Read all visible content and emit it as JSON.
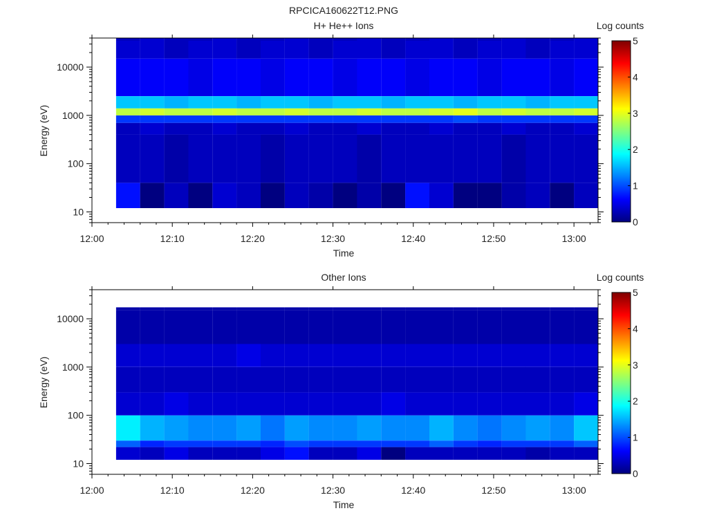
{
  "figure_title": "RPCICA160622T12.PNG",
  "chart_data": [
    {
      "type": "heatmap",
      "title": "H+ He++ Ions",
      "xlabel": "Time",
      "ylabel": "Energy (eV)",
      "yscale": "log",
      "ylim": [
        6,
        40000
      ],
      "xlim": [
        "12:00",
        "13:03"
      ],
      "x_ticks": [
        "12:00",
        "12:10",
        "12:20",
        "12:30",
        "12:40",
        "12:50",
        "13:00"
      ],
      "y_ticks": [
        "10",
        "100",
        "1000",
        "10000"
      ],
      "time_bins": [
        "12:03",
        "12:06",
        "12:09",
        "12:12",
        "12:15",
        "12:18",
        "12:21",
        "12:24",
        "12:27",
        "12:30",
        "12:33",
        "12:36",
        "12:39",
        "12:42",
        "12:45",
        "12:48",
        "12:51",
        "12:54",
        "12:57",
        "13:00"
      ],
      "energy_bins_eV": [
        12,
        40,
        400,
        700,
        1000,
        1400,
        2500,
        15000,
        35000
      ],
      "counts_log": [
        [
          0.7,
          0.3,
          0.3,
          0.9,
          2.8,
          1.6,
          0.6,
          0.4,
          0.3
        ],
        [
          0.0,
          0.3,
          0.4,
          0.9,
          2.9,
          1.6,
          0.6,
          0.4,
          0.4
        ],
        [
          0.3,
          0.2,
          0.3,
          0.9,
          2.8,
          1.5,
          0.6,
          0.3,
          0.3
        ],
        [
          0.0,
          0.3,
          0.3,
          0.9,
          2.8,
          1.6,
          0.5,
          0.4,
          0.3
        ],
        [
          0.4,
          0.3,
          0.4,
          0.9,
          2.9,
          1.6,
          0.6,
          0.4,
          0.4
        ],
        [
          0.3,
          0.3,
          0.3,
          0.9,
          2.8,
          1.5,
          0.6,
          0.3,
          0.3
        ],
        [
          0.0,
          0.2,
          0.3,
          0.9,
          2.8,
          1.6,
          0.5,
          0.4,
          0.3
        ],
        [
          0.3,
          0.3,
          0.4,
          0.9,
          2.9,
          1.6,
          0.6,
          0.4,
          0.4
        ],
        [
          0.2,
          0.3,
          0.3,
          0.9,
          2.8,
          1.5,
          0.6,
          0.3,
          0.3
        ],
        [
          0.0,
          0.3,
          0.3,
          0.9,
          2.8,
          1.6,
          0.5,
          0.4,
          0.3
        ],
        [
          0.2,
          0.2,
          0.4,
          0.9,
          2.9,
          1.6,
          0.6,
          0.4,
          0.4
        ],
        [
          0.0,
          0.3,
          0.3,
          0.9,
          2.8,
          1.5,
          0.6,
          0.3,
          0.3
        ],
        [
          0.7,
          0.3,
          0.3,
          0.9,
          2.8,
          1.6,
          0.5,
          0.4,
          0.3
        ],
        [
          0.4,
          0.3,
          0.4,
          0.9,
          2.9,
          1.6,
          0.6,
          0.4,
          0.4
        ],
        [
          0.0,
          0.3,
          0.3,
          1.0,
          3.0,
          1.5,
          0.6,
          0.3,
          0.3
        ],
        [
          0.0,
          0.3,
          0.3,
          0.9,
          2.8,
          1.6,
          0.5,
          0.4,
          0.3
        ],
        [
          0.2,
          0.2,
          0.4,
          0.9,
          2.9,
          1.6,
          0.6,
          0.4,
          0.4
        ],
        [
          0.3,
          0.3,
          0.3,
          0.9,
          2.8,
          1.5,
          0.6,
          0.3,
          0.3
        ],
        [
          0.0,
          0.3,
          0.3,
          0.9,
          2.8,
          1.6,
          0.5,
          0.4,
          0.3
        ],
        [
          0.3,
          0.3,
          0.4,
          0.9,
          2.9,
          1.6,
          0.6,
          0.4,
          0.4
        ]
      ],
      "colorbar": {
        "label": "Log counts",
        "min": 0,
        "max": 5,
        "ticks": [
          "0",
          "1",
          "2",
          "3",
          "4",
          "5"
        ]
      }
    },
    {
      "type": "heatmap",
      "title": "Other Ions",
      "xlabel": "Time",
      "ylabel": "Energy (eV)",
      "yscale": "log",
      "ylim": [
        6,
        40000
      ],
      "xlim": [
        "12:00",
        "13:03"
      ],
      "x_ticks": [
        "12:00",
        "12:10",
        "12:20",
        "12:30",
        "12:40",
        "12:50",
        "13:00"
      ],
      "y_ticks": [
        "10",
        "100",
        "1000",
        "10000"
      ],
      "time_bins": [
        "12:03",
        "12:06",
        "12:09",
        "12:12",
        "12:15",
        "12:18",
        "12:21",
        "12:24",
        "12:27",
        "12:30",
        "12:33",
        "12:36",
        "12:39",
        "12:42",
        "12:45",
        "12:48",
        "12:51",
        "12:54",
        "12:57",
        "13:00"
      ],
      "energy_bins_eV": [
        12,
        22,
        30,
        100,
        300,
        1000,
        3000,
        15000
      ],
      "counts_log": [
        [
          0.4,
          1.1,
          1.8,
          0.4,
          0.3,
          0.4,
          0.2,
          0.2
        ],
        [
          0.3,
          0.8,
          1.5,
          0.4,
          0.3,
          0.4,
          0.2,
          0.2
        ],
        [
          0.5,
          0.9,
          1.4,
          0.5,
          0.3,
          0.4,
          0.2,
          0.2
        ],
        [
          0.3,
          0.9,
          1.3,
          0.4,
          0.3,
          0.4,
          0.2,
          0.2
        ],
        [
          0.3,
          0.9,
          1.3,
          0.4,
          0.3,
          0.4,
          0.2,
          0.2
        ],
        [
          0.3,
          0.9,
          1.4,
          0.4,
          0.3,
          0.5,
          0.2,
          0.2
        ],
        [
          0.5,
          0.8,
          1.2,
          0.4,
          0.3,
          0.4,
          0.2,
          0.2
        ],
        [
          0.7,
          1.0,
          1.4,
          0.4,
          0.3,
          0.4,
          0.2,
          0.2
        ],
        [
          0.3,
          0.9,
          1.3,
          0.4,
          0.3,
          0.4,
          0.2,
          0.2
        ],
        [
          0.3,
          0.9,
          1.3,
          0.4,
          0.3,
          0.4,
          0.2,
          0.2
        ],
        [
          0.5,
          0.9,
          1.4,
          0.4,
          0.3,
          0.4,
          0.2,
          0.2
        ],
        [
          0.0,
          0.9,
          1.3,
          0.5,
          0.3,
          0.4,
          0.2,
          0.2
        ],
        [
          0.3,
          0.9,
          1.3,
          0.4,
          0.3,
          0.4,
          0.2,
          0.2
        ],
        [
          0.3,
          1.1,
          1.5,
          0.4,
          0.3,
          0.4,
          0.2,
          0.2
        ],
        [
          0.3,
          0.9,
          1.3,
          0.4,
          0.3,
          0.4,
          0.2,
          0.2
        ],
        [
          0.3,
          0.8,
          1.2,
          0.4,
          0.3,
          0.4,
          0.2,
          0.2
        ],
        [
          0.3,
          0.9,
          1.3,
          0.4,
          0.3,
          0.4,
          0.2,
          0.2
        ],
        [
          0.2,
          0.9,
          1.4,
          0.4,
          0.3,
          0.4,
          0.2,
          0.2
        ],
        [
          0.3,
          0.9,
          1.3,
          0.4,
          0.3,
          0.4,
          0.2,
          0.2
        ],
        [
          0.3,
          1.1,
          1.6,
          0.5,
          0.3,
          0.4,
          0.2,
          0.2
        ]
      ],
      "colorbar": {
        "label": "Log counts",
        "min": 0,
        "max": 5,
        "ticks": [
          "0",
          "1",
          "2",
          "3",
          "4",
          "5"
        ]
      }
    }
  ]
}
